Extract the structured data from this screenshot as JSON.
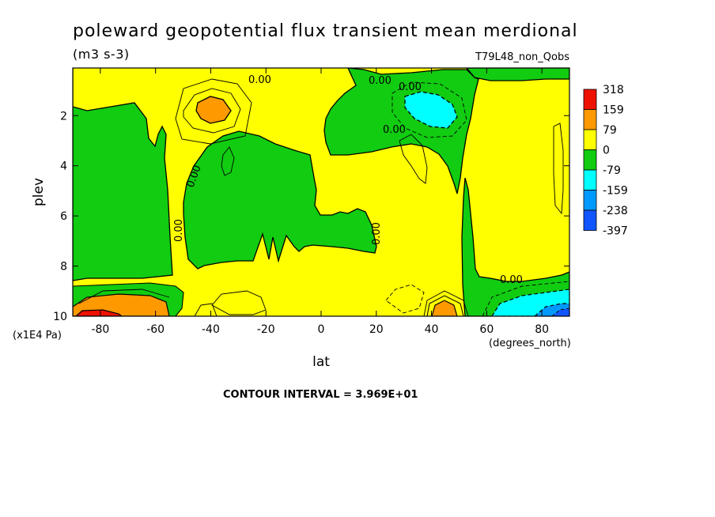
{
  "chart_data": {
    "type": "contour",
    "title": "poleward geopotential flux transient mean merdional",
    "units": "(m3 s-3)",
    "experiment": "T79L48_non_Qobs",
    "xlabel": "lat",
    "x_units": "(degrees_north)",
    "ylabel": "plev",
    "y_scale_note": "(x1E4 Pa)",
    "x_ticks": [
      "-80",
      "-60",
      "-40",
      "-20",
      "0",
      "20",
      "40",
      "60",
      "80"
    ],
    "x_tick_values": [
      -80,
      -60,
      -40,
      -20,
      0,
      20,
      40,
      60,
      80
    ],
    "xlim": [
      -90,
      90
    ],
    "y_ticks": [
      "2",
      "4",
      "6",
      "8",
      "10"
    ],
    "y_tick_values": [
      2,
      4,
      6,
      8,
      10
    ],
    "ylim": [
      0.1,
      10
    ],
    "contour_interval_text": "CONTOUR INTERVAL = 3.969E+01",
    "contour_labels": [
      "0.00",
      "0.00",
      "0.00",
      "0.00",
      "0.00",
      "0.00",
      "0.00",
      "0.00"
    ],
    "colorbar": {
      "labels": [
        "318",
        "159",
        "79",
        "0",
        "-79",
        "-159",
        "-238",
        "-397"
      ],
      "colors": [
        "#ee1100",
        "#ff9900",
        "#ffff00",
        "#11cc11",
        "#00ffff",
        "#0099ff",
        "#1155ff"
      ]
    },
    "regions": [
      {
        "name": "background",
        "level": "0..79"
      },
      {
        "name": "sh-polar-green",
        "level": "-79..0",
        "x": [
          -90,
          -55
        ],
        "y": [
          0.1,
          8.5
        ]
      },
      {
        "name": "tropical-green",
        "level": "-79..0",
        "x": [
          -55,
          20
        ],
        "y": [
          3,
          8
        ]
      },
      {
        "name": "upper-green",
        "level": "-79..0",
        "x": [
          0,
          55
        ],
        "y": [
          1,
          4
        ]
      },
      {
        "name": "nh-green-column",
        "level": "-79..0",
        "x": [
          50,
          55
        ],
        "y": [
          1,
          10
        ]
      },
      {
        "name": "nh-lower-green",
        "level": "-79..0",
        "x": [
          55,
          90
        ],
        "y": [
          8.5,
          10
        ]
      },
      {
        "name": "orange-upper",
        "level": "79..159",
        "x": [
          -46,
          -36
        ],
        "y": [
          1.4,
          2.3
        ]
      },
      {
        "name": "cyan-upper",
        "level": "-159..-79",
        "x": [
          30,
          50
        ],
        "y": [
          1.2,
          2.5
        ]
      },
      {
        "name": "orange-surface-sh",
        "level": "79..159",
        "x": [
          -90,
          -58
        ],
        "y": [
          9.3,
          10
        ]
      },
      {
        "name": "red-surface-sh",
        "level": "159..318",
        "x": [
          -88,
          -75
        ],
        "y": [
          9.8,
          10
        ]
      },
      {
        "name": "orange-surface-40n",
        "level": "79..159",
        "x": [
          40,
          50
        ],
        "y": [
          9.5,
          10
        ]
      },
      {
        "name": "cyan-surface-nh",
        "level": "-159..-79",
        "x": [
          58,
          90
        ],
        "y": [
          9.2,
          10
        ]
      },
      {
        "name": "blue-surface-nh",
        "level": "-238..-159",
        "x": [
          80,
          90
        ],
        "y": [
          9.7,
          10
        ]
      }
    ]
  }
}
